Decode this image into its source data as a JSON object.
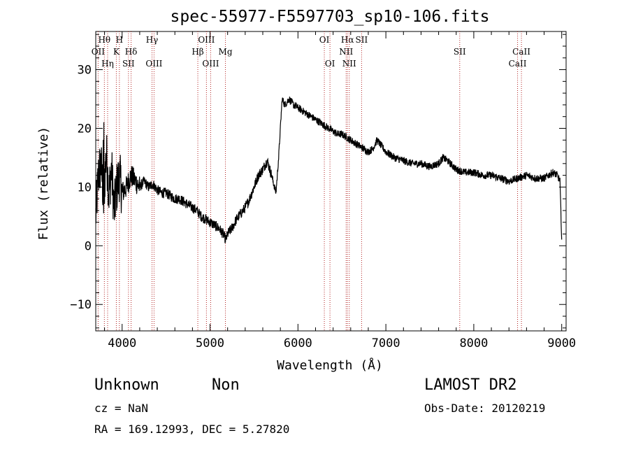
{
  "chart_data": {
    "type": "line",
    "title": "spec-55977-F5597703_sp10-106.fits",
    "xlabel": "Wavelength (Å)",
    "ylabel": "Flux (relative)",
    "xlim": [
      3700,
      9050
    ],
    "ylim": [
      -14.5,
      36.5
    ],
    "x_ticks": [
      4000,
      5000,
      6000,
      7000,
      8000,
      9000
    ],
    "x_tick_labels": [
      "4000",
      "5000",
      "6000",
      "7000",
      "8000",
      "9000"
    ],
    "y_ticks": [
      -10,
      0,
      10,
      20,
      30
    ],
    "y_tick_labels": [
      "−10",
      "0",
      "10",
      "20",
      "30"
    ],
    "grid": false,
    "series": [
      {
        "name": "flux",
        "x": [
          3700,
          3730,
          3760,
          3790,
          3820,
          3850,
          3880,
          3910,
          3940,
          3970,
          4000,
          4050,
          4100,
          4150,
          4200,
          4250,
          4300,
          4350,
          4400,
          4450,
          4500,
          4550,
          4600,
          4650,
          4700,
          4750,
          4800,
          4850,
          4900,
          4950,
          5000,
          5050,
          5100,
          5150,
          5180,
          5200,
          5250,
          5300,
          5350,
          5400,
          5450,
          5500,
          5550,
          5600,
          5650,
          5700,
          5750,
          5780,
          5800,
          5820,
          5850,
          5900,
          5950,
          6000,
          6050,
          6100,
          6150,
          6200,
          6250,
          6300,
          6350,
          6400,
          6450,
          6500,
          6550,
          6600,
          6650,
          6700,
          6750,
          6800,
          6850,
          6900,
          6950,
          7000,
          7100,
          7200,
          7300,
          7400,
          7500,
          7600,
          7650,
          7700,
          7800,
          7900,
          8000,
          8100,
          8200,
          8300,
          8400,
          8500,
          8600,
          8700,
          8800,
          8850,
          8900,
          8950,
          8980,
          9000
        ],
        "y": [
          5,
          12,
          14,
          8,
          16,
          9,
          13,
          6,
          10,
          12,
          9,
          10,
          12,
          11,
          10,
          11,
          10,
          10.5,
          9.5,
          9,
          9,
          8.5,
          8,
          8,
          7.5,
          7,
          6.5,
          6,
          5,
          4.5,
          4,
          3.5,
          3,
          2,
          1,
          2,
          3,
          4.5,
          5.5,
          6.5,
          8,
          10,
          12,
          13,
          14.5,
          12,
          9,
          15,
          20,
          25,
          24,
          25,
          24,
          23.5,
          23,
          22.5,
          22,
          21.5,
          21,
          20.5,
          20,
          19.5,
          19,
          19,
          18.5,
          18,
          17.5,
          17,
          16.5,
          16,
          16.5,
          18,
          17,
          16,
          15,
          14.5,
          14,
          14,
          13.5,
          14,
          15,
          14.5,
          13,
          12.5,
          12.5,
          12,
          12,
          11.5,
          11,
          11.5,
          12,
          11.5,
          11.5,
          12,
          12.5,
          12,
          11,
          1
        ]
      }
    ],
    "spectral_lines": [
      {
        "name": "Hθ",
        "wavelength": 3798,
        "tier": "top"
      },
      {
        "name": "OII",
        "wavelength": 3727,
        "tier": "upper"
      },
      {
        "name": "Hη",
        "wavelength": 3835,
        "tier": "lower"
      },
      {
        "name": "H",
        "wavelength": 3969,
        "tier": "top"
      },
      {
        "name": "K",
        "wavelength": 3934,
        "tier": "upper"
      },
      {
        "name": "Hδ",
        "wavelength": 4102,
        "tier": "upper"
      },
      {
        "name": "SII",
        "wavelength": 4072,
        "tier": "lower"
      },
      {
        "name": "Hγ",
        "wavelength": 4340,
        "tier": "top"
      },
      {
        "name": "OIII",
        "wavelength": 4363,
        "tier": "lower"
      },
      {
        "name": "OIII",
        "wavelength": 4959,
        "tier": "top"
      },
      {
        "name": "Hβ",
        "wavelength": 4861,
        "tier": "upper"
      },
      {
        "name": "OIII",
        "wavelength": 5007,
        "tier": "lower"
      },
      {
        "name": "Mg",
        "wavelength": 5175,
        "tier": "upper"
      },
      {
        "name": "OI",
        "wavelength": 6300,
        "tier": "top"
      },
      {
        "name": "OI",
        "wavelength": 6364,
        "tier": "lower"
      },
      {
        "name": "Hα",
        "wavelength": 6563,
        "tier": "top"
      },
      {
        "name": "SII",
        "wavelength": 6724,
        "tier": "top"
      },
      {
        "name": "NII",
        "wavelength": 6548,
        "tier": "upper"
      },
      {
        "name": "NII",
        "wavelength": 6584,
        "tier": "lower"
      },
      {
        "name": "SII",
        "wavelength": 7840,
        "tier": "upper"
      },
      {
        "name": "CaII",
        "wavelength": 8542,
        "tier": "upper"
      },
      {
        "name": "CaII",
        "wavelength": 8498,
        "tier": "lower"
      }
    ]
  },
  "info": {
    "class": "Unknown",
    "subclass": "Non",
    "survey": "LAMOST DR2",
    "cz": "cz = NaN",
    "obs_date": "Obs-Date: 20120219",
    "coords": "RA = 169.12993, DEC =    5.27820"
  }
}
